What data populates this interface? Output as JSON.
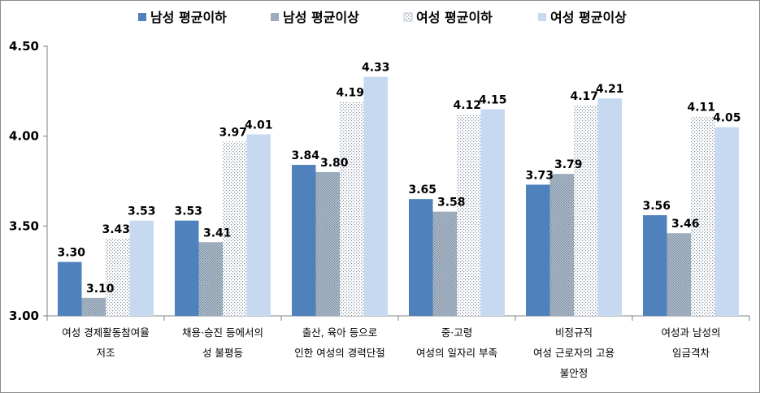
{
  "chart_data": {
    "type": "bar",
    "categories": [
      [
        "여성 경제활동참여율",
        "저조"
      ],
      [
        "채용·승진 등에서의",
        "성 불평등"
      ],
      [
        "출산, 육아 등으로",
        "인한 여성의 경력단절"
      ],
      [
        "중·고령",
        "여성의 일자리 부족"
      ],
      [
        "비정규직",
        "여성 근로자의 고용",
        "불안정"
      ],
      [
        "여성과 남성의",
        "임금격차"
      ]
    ],
    "series": [
      {
        "name": "남성 평균이하",
        "values": [
          3.3,
          3.53,
          3.84,
          3.65,
          3.73,
          3.56
        ],
        "color": "#4f81bd",
        "pattern": "solid"
      },
      {
        "name": "남성 평균이상",
        "values": [
          3.1,
          3.41,
          3.8,
          3.58,
          3.79,
          3.46
        ],
        "color": "#8fa3b8",
        "pattern": "dots-dense"
      },
      {
        "name": "여성 평균이하",
        "values": [
          3.43,
          3.97,
          4.19,
          4.12,
          4.17,
          4.11
        ],
        "color": "#ffffff",
        "pattern": "dots-sparse"
      },
      {
        "name": "여성 평균이상",
        "values": [
          3.53,
          4.01,
          4.33,
          4.15,
          4.21,
          4.05
        ],
        "color": "#c6d9f1",
        "pattern": "solid"
      }
    ],
    "value_labels": [
      [
        "3.30",
        "3.53",
        "3.84",
        "3.65",
        "3.73",
        "3.56"
      ],
      [
        "3.10",
        "3.41",
        "3.80",
        "3.58",
        "3.79",
        "3.46"
      ],
      [
        "3.43",
        "3.97",
        "4.19",
        "4.12",
        "4.17",
        "4.11"
      ],
      [
        "3.53",
        "4.01",
        "4.33",
        "4.15",
        "4.21",
        "4.05"
      ]
    ],
    "yticks": [
      "3.00",
      "3.50",
      "4.00",
      "4.50"
    ],
    "ylim": [
      3.0,
      4.5
    ],
    "grid": false,
    "legend": "top"
  }
}
